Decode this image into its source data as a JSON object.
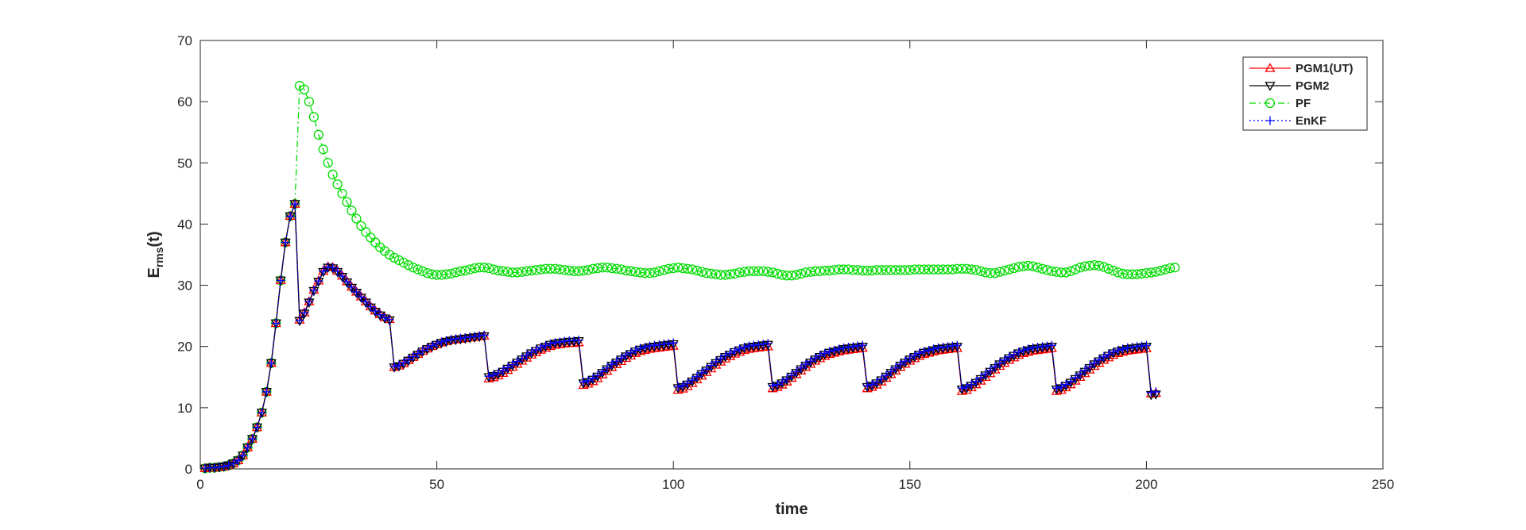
{
  "chart_data": {
    "type": "line",
    "title": "",
    "xlabel": "time",
    "ylabel": {
      "main": "E",
      "sub": "rms",
      "suffix": "(t)"
    },
    "xlim": [
      0,
      250
    ],
    "ylim": [
      0,
      70
    ],
    "xticks": [
      0,
      50,
      100,
      150,
      200,
      250
    ],
    "yticks": [
      0,
      10,
      20,
      30,
      40,
      50,
      60,
      70
    ],
    "xtick_labels": [
      "0",
      "50",
      "100",
      "150",
      "200",
      "250"
    ],
    "ytick_labels": [
      "0",
      "10",
      "20",
      "30",
      "40",
      "50",
      "60",
      "70"
    ],
    "grid": false,
    "legend_position": "top-right",
    "growth_phase": [
      [
        1,
        0.1
      ],
      [
        2,
        0.2
      ],
      [
        3,
        0.2
      ],
      [
        4,
        0.3
      ],
      [
        5,
        0.4
      ],
      [
        6,
        0.6
      ],
      [
        7,
        0.9
      ],
      [
        8,
        1.4
      ],
      [
        9,
        2.2
      ],
      [
        10,
        3.5
      ],
      [
        11,
        4.9
      ],
      [
        12,
        6.8
      ],
      [
        13,
        9.2
      ],
      [
        14,
        12.6
      ],
      [
        15,
        17.3
      ],
      [
        16,
        23.8
      ],
      [
        17,
        30.8
      ],
      [
        18,
        37.0
      ],
      [
        19,
        41.3
      ],
      [
        20,
        43.3
      ]
    ],
    "kalman_segments": [
      {
        "t_start": 21,
        "t_end": 40,
        "values": [
          24.2,
          25.4,
          27.2,
          29.1,
          30.6,
          32.2,
          32.9,
          32.8,
          32.2,
          31.4,
          30.5,
          29.6,
          28.8,
          28.0,
          27.2,
          26.4,
          25.7,
          25.1,
          24.6,
          24.3
        ]
      },
      {
        "t_start": 41,
        "t_end": 60,
        "values": [
          16.6,
          16.8,
          17.2,
          17.7,
          18.2,
          18.7,
          19.2,
          19.6,
          20.0,
          20.3,
          20.6,
          20.8,
          21.0,
          21.1,
          21.2,
          21.3,
          21.4,
          21.5,
          21.6,
          21.7
        ]
      },
      {
        "t_start": 61,
        "t_end": 80,
        "values": [
          15.0,
          15.2,
          15.5,
          15.9,
          16.4,
          16.9,
          17.4,
          17.9,
          18.4,
          18.9,
          19.3,
          19.7,
          20.0,
          20.3,
          20.5,
          20.6,
          20.7,
          20.8,
          20.8,
          20.9
        ]
      },
      {
        "t_start": 81,
        "t_end": 100,
        "values": [
          14.0,
          14.2,
          14.6,
          15.1,
          15.7,
          16.3,
          16.9,
          17.4,
          17.9,
          18.4,
          18.8,
          19.2,
          19.5,
          19.7,
          19.9,
          20.0,
          20.1,
          20.2,
          20.3,
          20.4
        ]
      },
      {
        "t_start": 101,
        "t_end": 120,
        "values": [
          13.2,
          13.4,
          13.8,
          14.3,
          14.9,
          15.5,
          16.1,
          16.7,
          17.3,
          17.8,
          18.3,
          18.7,
          19.1,
          19.4,
          19.7,
          19.9,
          20.0,
          20.1,
          20.2,
          20.3
        ]
      },
      {
        "t_start": 121,
        "t_end": 140,
        "values": [
          13.4,
          13.6,
          14.0,
          14.5,
          15.1,
          15.7,
          16.3,
          16.9,
          17.4,
          17.9,
          18.3,
          18.7,
          19.0,
          19.2,
          19.4,
          19.6,
          19.7,
          19.8,
          19.9,
          20.0
        ]
      },
      {
        "t_start": 141,
        "t_end": 160,
        "values": [
          13.4,
          13.6,
          14.0,
          14.5,
          15.1,
          15.7,
          16.3,
          16.9,
          17.4,
          17.9,
          18.3,
          18.7,
          19.0,
          19.2,
          19.4,
          19.6,
          19.7,
          19.8,
          19.9,
          20.0
        ]
      },
      {
        "t_start": 161,
        "t_end": 180,
        "values": [
          13.0,
          13.2,
          13.6,
          14.1,
          14.7,
          15.3,
          15.9,
          16.5,
          17.1,
          17.6,
          18.1,
          18.5,
          18.9,
          19.2,
          19.4,
          19.6,
          19.7,
          19.8,
          19.9,
          20.0
        ]
      },
      {
        "t_start": 181,
        "t_end": 200,
        "values": [
          13.0,
          13.2,
          13.6,
          14.1,
          14.7,
          15.3,
          15.9,
          16.5,
          17.1,
          17.6,
          18.1,
          18.5,
          18.9,
          19.2,
          19.4,
          19.6,
          19.7,
          19.8,
          19.9,
          20.0
        ]
      },
      {
        "t_start": 201,
        "t_end": 202,
        "values": [
          12.3,
          12.4
        ]
      }
    ],
    "pf_tail": {
      "t_start": 21,
      "values": [
        62.6,
        62.0,
        60.0,
        57.5,
        54.6,
        52.2,
        50.0,
        48.1,
        46.5,
        45.0,
        43.6,
        42.2,
        40.9,
        39.7,
        38.7,
        37.8,
        37.0,
        36.2,
        35.6,
        35.0,
        34.5,
        34.1,
        33.7,
        33.3,
        32.9,
        32.6,
        32.3,
        32.0,
        31.8,
        31.7,
        31.7,
        31.8,
        31.9,
        32.1,
        32.3,
        32.4,
        32.6,
        32.8,
        32.9,
        32.9,
        32.8,
        32.6,
        32.4,
        32.3,
        32.2,
        32.1,
        32.1,
        32.2,
        32.3,
        32.4,
        32.5,
        32.6,
        32.7,
        32.7,
        32.7,
        32.6,
        32.5,
        32.4,
        32.3,
        32.3,
        32.4,
        32.5,
        32.7,
        32.8,
        32.9,
        32.9,
        32.8,
        32.7,
        32.6,
        32.4,
        32.3,
        32.2,
        32.1,
        32.0,
        32.0,
        32.1,
        32.3,
        32.5,
        32.7,
        32.8,
        32.9,
        32.8,
        32.7,
        32.6,
        32.4,
        32.2,
        32.0,
        31.9,
        31.8,
        31.7,
        31.7,
        31.8,
        31.9,
        32.1,
        32.2,
        32.3,
        32.3,
        32.3,
        32.3,
        32.2,
        32.1,
        31.9,
        31.7,
        31.6,
        31.6,
        31.7,
        31.9,
        32.1,
        32.2,
        32.3,
        32.3,
        32.4,
        32.4,
        32.5,
        32.6,
        32.6,
        32.6,
        32.5,
        32.5,
        32.4,
        32.4,
        32.4,
        32.5,
        32.5,
        32.5,
        32.5,
        32.5,
        32.5,
        32.5,
        32.5,
        32.6,
        32.6,
        32.6,
        32.6,
        32.6,
        32.6,
        32.6,
        32.6,
        32.6,
        32.7,
        32.7,
        32.7,
        32.6,
        32.5,
        32.3,
        32.1,
        32.0,
        32.0,
        32.2,
        32.4,
        32.6,
        32.8,
        33.0,
        33.1,
        33.2,
        33.1,
        32.9,
        32.7,
        32.5,
        32.3,
        32.2,
        32.1,
        32.1,
        32.3,
        32.6,
        32.9,
        33.1,
        33.2,
        33.3,
        33.2,
        33.0,
        32.7,
        32.4,
        32.1,
        31.9,
        31.8,
        31.8,
        31.8,
        31.9,
        32.0,
        32.1,
        32.2,
        32.4,
        32.6,
        32.8,
        32.9
      ]
    },
    "series": [
      {
        "name": "PGM1(UT)",
        "color": "#ff0000",
        "dash": "solid",
        "marker": "triangle-up",
        "segment_offsets": [
          0.15,
          0.05,
          -0.25,
          -0.3,
          -0.3,
          -0.25,
          -0.25,
          -0.3,
          -0.3,
          0.0
        ]
      },
      {
        "name": "PGM2",
        "color": "#000000",
        "dash": "solid",
        "marker": "triangle-down",
        "segment_offsets": [
          0.0,
          0.0,
          0.0,
          0.0,
          0.0,
          0.0,
          0.0,
          0.0,
          0.0,
          -0.2
        ]
      },
      {
        "name": "PF",
        "color": "#00dd00",
        "dash": "dashdot",
        "marker": "circle"
      },
      {
        "name": "EnKF",
        "color": "#0000ff",
        "dash": "dotted",
        "marker": "plus",
        "segment_offsets": [
          0.1,
          0.15,
          0.15,
          0.2,
          0.2,
          0.2,
          0.2,
          0.2,
          0.2,
          0.2
        ]
      }
    ]
  }
}
